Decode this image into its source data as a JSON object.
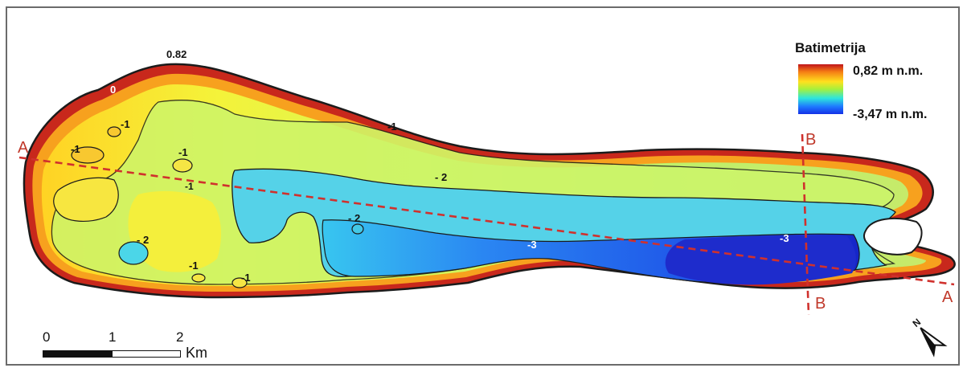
{
  "legend": {
    "title": "Batimetrija",
    "max_label": "0,82 m n.m.",
    "min_label": "-3,47 m n.m.",
    "colors": [
      "#c0141a",
      "#f57d14",
      "#ffe11e",
      "#a6f03c",
      "#2ee6dc",
      "#1e78ff",
      "#1430e6"
    ]
  },
  "contours": {
    "top": "0.82",
    "zero": "0",
    "m1": "-1",
    "m2": "- 2",
    "m3": "-3"
  },
  "sections": {
    "a": "A",
    "b": "B"
  },
  "scale": {
    "n0": "0",
    "n1": "1",
    "n2": "2",
    "unit": "Km"
  },
  "north_arrow": {
    "icon": "north-arrow-icon",
    "letter": "N"
  }
}
